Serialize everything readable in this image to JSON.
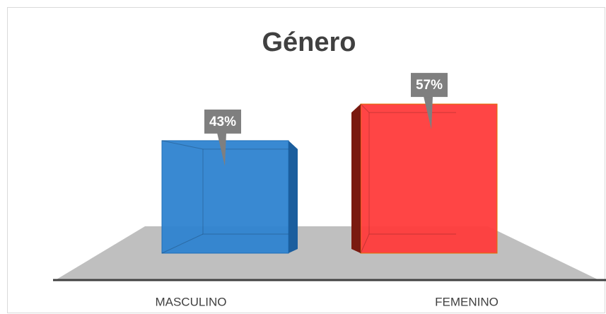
{
  "chart_data": {
    "type": "bar",
    "title": "Género",
    "categories": [
      "MASCULINO",
      "FEMENINO"
    ],
    "values": [
      43,
      57
    ],
    "value_labels": [
      "43%",
      "57%"
    ],
    "colors": [
      "#2e83d0",
      "#ff3b3b"
    ]
  }
}
